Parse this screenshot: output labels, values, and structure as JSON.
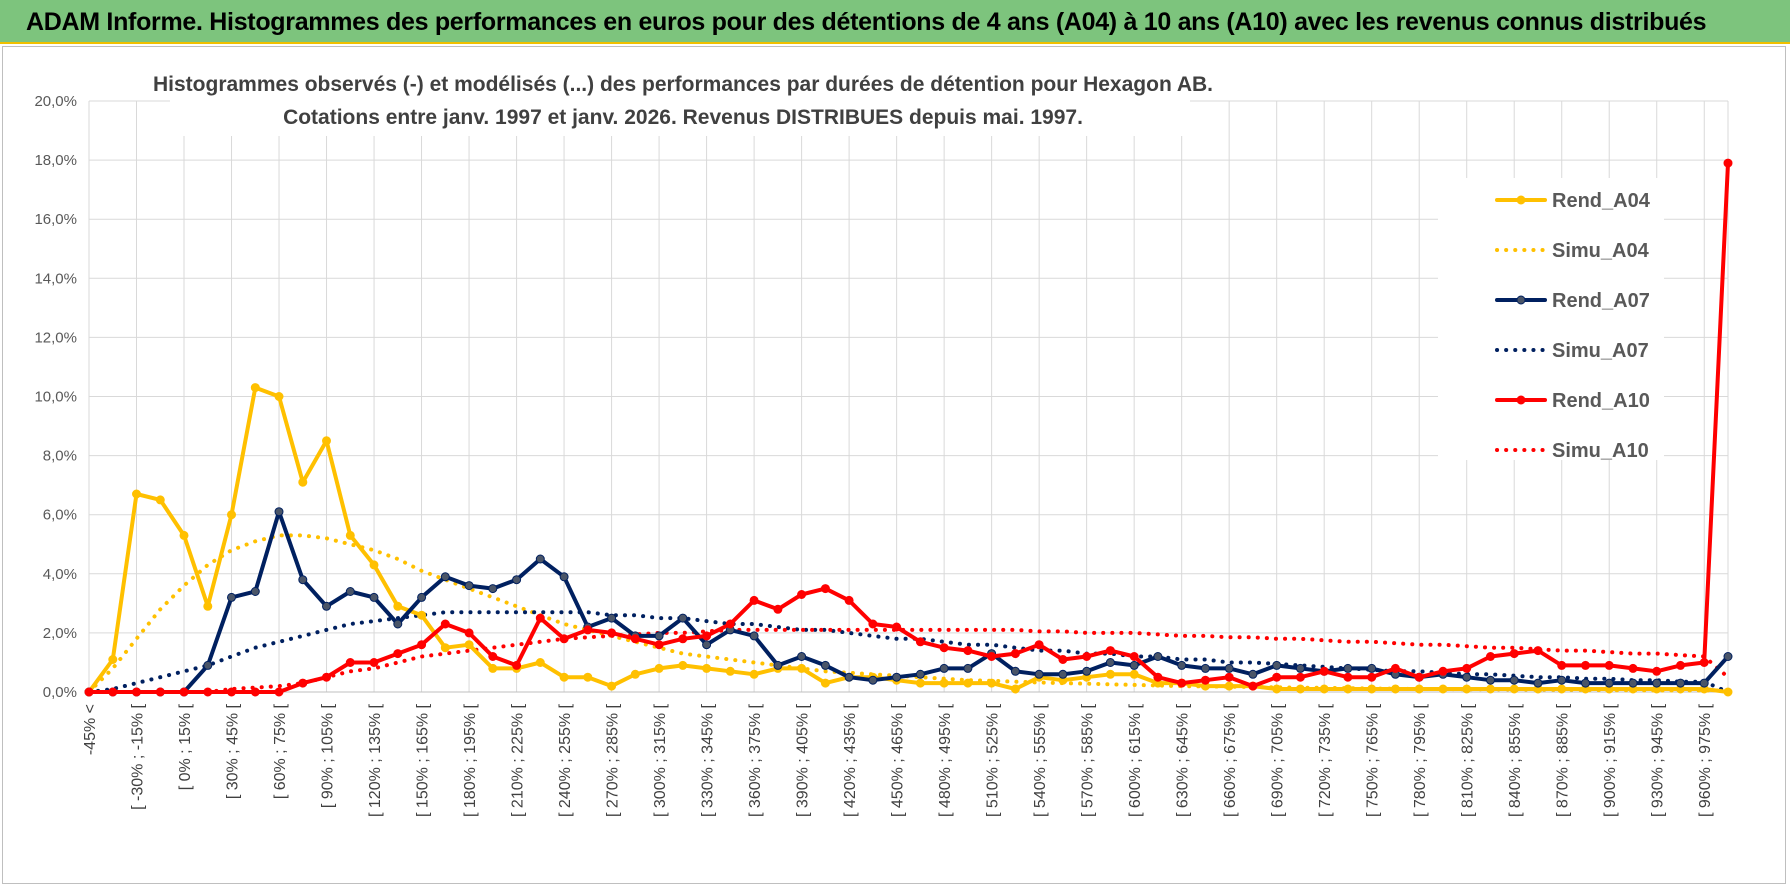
{
  "banner": {
    "title": "ADAM Informe. Histogrammes des performances en euros pour des détentions de 4 ans (A04) à 10 ans (A10) avec les revenus connus distribués"
  },
  "chart_data": {
    "type": "line",
    "title": "Histogrammes observés (-) et modélisés (...) des performances par durées de détention pour Hexagon AB.",
    "subtitle": "Cotations entre janv. 1997 et janv. 2026. Revenus DISTRIBUES depuis mai. 1997.",
    "ylim": [
      0,
      20
    ],
    "yticks": [
      "0,0%",
      "2,0%",
      "4,0%",
      "6,0%",
      "8,0%",
      "10,0%",
      "12,0%",
      "14,0%",
      "16,0%",
      "18,0%",
      "20,0%"
    ],
    "xtick_labels": [
      "-45% <",
      "[ -30% ; -15% [",
      "[ 0% ; 15% [",
      "[ 30% ; 45% [",
      "[ 60% ; 75% [",
      "[ 90% ; 105% [",
      "[ 120% ; 135% [",
      "[ 150% ; 165% [",
      "[ 180% ; 195% [",
      "[ 210% ; 225% [",
      "[ 240% ; 255% [",
      "[ 270% ; 285% [",
      "[ 300% ; 315% [",
      "[ 330% ; 345% [",
      "[ 360% ; 375% [",
      "[ 390% ; 405% [",
      "[ 420% ; 435% [",
      "[ 450% ; 465% [",
      "[ 480% ; 495% [",
      "[ 510% ; 525% [",
      "[ 540% ; 555% [",
      "[ 570% ; 585% [",
      "[ 600% ; 615% [",
      "[ 630% ; 645% [",
      "[ 660% ; 675% [",
      "[ 690% ; 705% [",
      "[ 720% ; 735% [",
      "[ 750% ; 765% [",
      "[ 780% ; 795% [",
      "[ 810% ; 825% [",
      "[ 840% ; 855% [",
      "[ 870% ; 885% [",
      "[ 900% ; 915% [",
      "[ 930% ; 945% [",
      "[ 960% ; 975% ["
    ],
    "series": [
      {
        "name": "Rend_A04",
        "style": "solid",
        "color": "#ffc000",
        "values": [
          0,
          1.1,
          6.7,
          6.5,
          5.3,
          2.9,
          6,
          10.3,
          10,
          7.1,
          8.5,
          5.3,
          4.3,
          2.9,
          2.6,
          1.5,
          1.6,
          0.8,
          0.8,
          1,
          0.5,
          0.5,
          0.2,
          0.6,
          0.8,
          0.9,
          0.8,
          0.7,
          0.6,
          0.8,
          0.8,
          0.3,
          0.5,
          0.5,
          0.4,
          0.3,
          0.3,
          0.3,
          0.3,
          0.1,
          0.5,
          0.4,
          0.5,
          0.6,
          0.6,
          0.3,
          0.3,
          0.2,
          0.2,
          0.2,
          0.1,
          0.1,
          0.1,
          0.1,
          0.1,
          0.1,
          0.1,
          0.1,
          0.1,
          0.1,
          0.1,
          0.1,
          0.1,
          0.1,
          0.1,
          0.1,
          0.1,
          0.1,
          0.1,
          0
        ]
      },
      {
        "name": "Simu_A04",
        "style": "dotted",
        "color": "#ffc000",
        "values": [
          0,
          0.8,
          1.8,
          2.8,
          3.6,
          4.3,
          4.8,
          5.1,
          5.3,
          5.3,
          5.2,
          5,
          4.8,
          4.5,
          4.1,
          3.8,
          3.5,
          3.2,
          2.9,
          2.6,
          2.3,
          2.1,
          1.9,
          1.7,
          1.5,
          1.3,
          1.2,
          1.1,
          1,
          0.9,
          0.8,
          0.7,
          0.65,
          0.6,
          0.55,
          0.5,
          0.45,
          0.4,
          0.38,
          0.35,
          0.32,
          0.3,
          0.28,
          0.26,
          0.24,
          0.22,
          0.2,
          0.19,
          0.18,
          0.17,
          0.16,
          0.15,
          0.14,
          0.13,
          0.12,
          0.11,
          0.1,
          0.1,
          0.09,
          0.09,
          0.08,
          0.08,
          0.07,
          0.07,
          0.06,
          0.06,
          0.05,
          0.05,
          0.05,
          0.05
        ]
      },
      {
        "name": "Rend_A07",
        "style": "solid",
        "color": "#002060",
        "values": [
          0,
          0,
          0,
          0,
          0,
          0.9,
          3.2,
          3.4,
          6.1,
          3.8,
          2.9,
          3.4,
          3.2,
          2.3,
          3.2,
          3.9,
          3.6,
          3.5,
          3.8,
          4.5,
          3.9,
          2.2,
          2.5,
          1.9,
          1.9,
          2.5,
          1.6,
          2.1,
          1.9,
          0.9,
          1.2,
          0.9,
          0.5,
          0.4,
          0.5,
          0.6,
          0.8,
          0.8,
          1.3,
          0.7,
          0.6,
          0.6,
          0.7,
          1,
          0.9,
          1.2,
          0.9,
          0.8,
          0.8,
          0.6,
          0.9,
          0.8,
          0.7,
          0.8,
          0.8,
          0.6,
          0.5,
          0.6,
          0.5,
          0.4,
          0.4,
          0.3,
          0.4,
          0.3,
          0.3,
          0.3,
          0.3,
          0.3,
          0.3,
          1.2
        ]
      },
      {
        "name": "Simu_A07",
        "style": "dotted",
        "color": "#002060",
        "values": [
          0,
          0.1,
          0.3,
          0.5,
          0.7,
          0.9,
          1.2,
          1.5,
          1.7,
          1.9,
          2.1,
          2.3,
          2.4,
          2.5,
          2.6,
          2.7,
          2.7,
          2.7,
          2.7,
          2.7,
          2.7,
          2.7,
          2.6,
          2.6,
          2.5,
          2.5,
          2.4,
          2.3,
          2.3,
          2.2,
          2.1,
          2.1,
          2,
          1.9,
          1.8,
          1.8,
          1.7,
          1.6,
          1.6,
          1.5,
          1.4,
          1.4,
          1.3,
          1.3,
          1.2,
          1.2,
          1.1,
          1.1,
          1,
          1,
          0.95,
          0.9,
          0.85,
          0.8,
          0.75,
          0.7,
          0.7,
          0.65,
          0.6,
          0.6,
          0.55,
          0.5,
          0.5,
          0.45,
          0.45,
          0.4,
          0.4,
          0.35,
          0.35,
          0
        ]
      },
      {
        "name": "Rend_A10",
        "style": "solid",
        "color": "#ff0000",
        "values": [
          0,
          0,
          0,
          0,
          0,
          0,
          0,
          0,
          0,
          0.3,
          0.5,
          1,
          1,
          1.3,
          1.6,
          2.3,
          2,
          1.2,
          0.9,
          2.5,
          1.8,
          2.1,
          2,
          1.8,
          1.6,
          1.8,
          1.9,
          2.3,
          3.1,
          2.8,
          3.3,
          3.5,
          3.1,
          2.3,
          2.2,
          1.7,
          1.5,
          1.4,
          1.2,
          1.3,
          1.6,
          1.1,
          1.2,
          1.4,
          1.2,
          0.5,
          0.3,
          0.4,
          0.5,
          0.2,
          0.5,
          0.5,
          0.7,
          0.5,
          0.5,
          0.8,
          0.5,
          0.7,
          0.8,
          1.2,
          1.3,
          1.4,
          0.9,
          0.9,
          0.9,
          0.8,
          0.7,
          0.9,
          1,
          17.9
        ]
      },
      {
        "name": "Simu_A10",
        "style": "dotted",
        "color": "#ff0000",
        "values": [
          0,
          0,
          0,
          0,
          0,
          0,
          0.1,
          0.15,
          0.2,
          0.3,
          0.5,
          0.7,
          0.8,
          1,
          1.2,
          1.3,
          1.4,
          1.5,
          1.6,
          1.7,
          1.8,
          1.85,
          1.9,
          1.95,
          2,
          2,
          2.05,
          2.1,
          2.1,
          2.1,
          2.1,
          2.1,
          2.1,
          2.1,
          2.1,
          2.1,
          2.1,
          2.1,
          2.1,
          2.1,
          2.05,
          2.05,
          2,
          2,
          2,
          1.95,
          1.9,
          1.9,
          1.85,
          1.85,
          1.8,
          1.8,
          1.75,
          1.7,
          1.7,
          1.65,
          1.6,
          1.6,
          1.55,
          1.5,
          1.5,
          1.45,
          1.4,
          1.4,
          1.35,
          1.3,
          1.3,
          1.25,
          1.2,
          0.5
        ]
      }
    ],
    "legend_position": "right"
  }
}
